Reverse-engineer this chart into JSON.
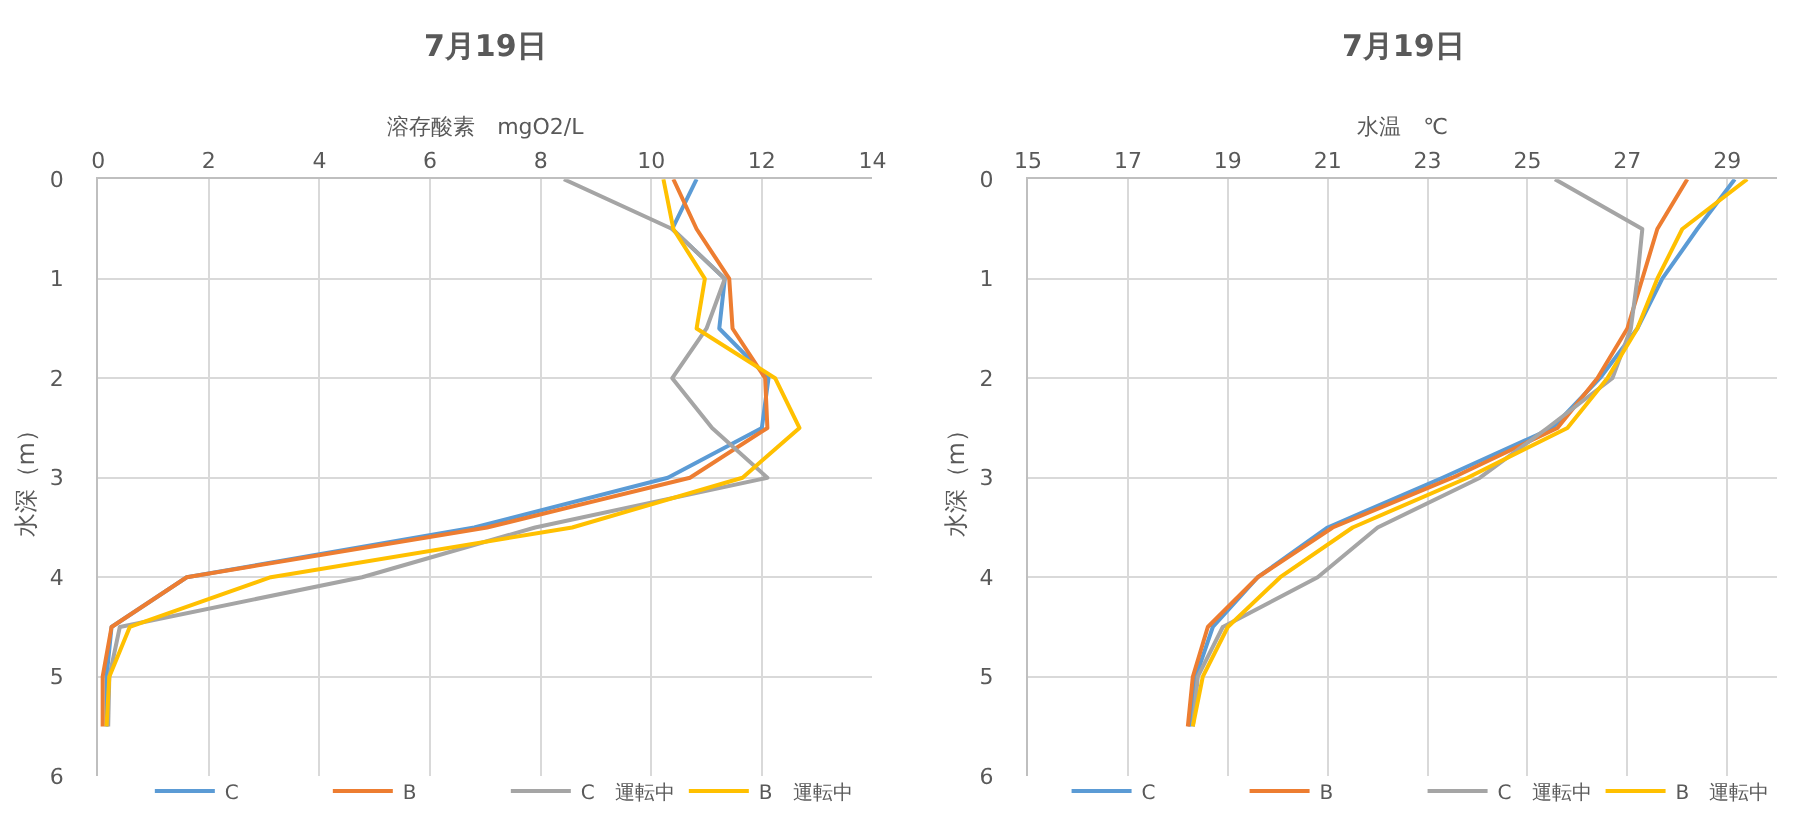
{
  "chart_data": [
    {
      "type": "line",
      "title": "7月19日",
      "xlabel": "溶存酸素　mgO2/L",
      "ylabel": "水深（m）",
      "xlim": [
        0,
        14
      ],
      "xticks": [
        0,
        2,
        4,
        6,
        8,
        10,
        12,
        14
      ],
      "ylim": [
        6,
        0
      ],
      "yticks": [
        0,
        1,
        2,
        3,
        4,
        5,
        6
      ],
      "grid": true,
      "legend": "bottom",
      "marker": "none",
      "line_style": "solid",
      "series": [
        {
          "name": "C",
          "color": "#5b9bd5",
          "x": [
            10.82,
            10.38,
            11.33,
            11.23,
            12.12,
            12.0,
            10.3,
            6.8,
            1.6,
            0.24,
            0.15,
            0.15
          ],
          "values": [
            0,
            0.5,
            1,
            1.5,
            2,
            2.5,
            3,
            3.5,
            4,
            4.5,
            5,
            5.5
          ]
        },
        {
          "name": "B",
          "color": "#ed7d31",
          "x": [
            10.4,
            10.82,
            11.41,
            11.47,
            12.06,
            12.1,
            10.7,
            7.03,
            1.6,
            0.24,
            0.08,
            0.08
          ],
          "values": [
            0,
            0.5,
            1,
            1.5,
            2,
            2.5,
            3,
            3.5,
            4,
            4.5,
            5,
            5.5
          ]
        },
        {
          "name": "C　運転中",
          "color": "#a5a5a5",
          "x": [
            8.42,
            10.38,
            11.33,
            11.0,
            10.38,
            11.1,
            12.1,
            7.9,
            4.77,
            0.39,
            0.2,
            0.18
          ],
          "values": [
            0,
            0.5,
            1,
            1.5,
            2,
            2.5,
            3,
            3.5,
            4,
            4.5,
            5,
            5.5
          ]
        },
        {
          "name": "B　運転中",
          "color": "#ffc000",
          "x": [
            10.22,
            10.4,
            10.97,
            10.82,
            12.24,
            12.68,
            11.65,
            8.57,
            3.12,
            0.57,
            0.2,
            0.15
          ],
          "values": [
            0,
            0.5,
            1,
            1.5,
            2,
            2.5,
            3,
            3.5,
            4,
            4.5,
            5,
            5.5
          ]
        }
      ]
    },
    {
      "type": "line",
      "title": "7月19日",
      "xlabel": "水温　℃",
      "ylabel": "水深（m）",
      "xlim": [
        15,
        30
      ],
      "xticks": [
        15,
        17,
        19,
        21,
        23,
        25,
        27,
        29
      ],
      "ylim": [
        6,
        0
      ],
      "yticks": [
        0,
        1,
        2,
        3,
        4,
        5,
        6
      ],
      "grid": true,
      "legend": "bottom",
      "marker": "none",
      "line_style": "solid",
      "series": [
        {
          "name": "C",
          "color": "#5b9bd5",
          "x": [
            29.15,
            28.4,
            27.7,
            27.2,
            26.45,
            25.5,
            23.3,
            21.0,
            19.6,
            18.7,
            18.36,
            18.23
          ],
          "values": [
            0,
            0.5,
            1,
            1.5,
            2,
            2.5,
            3,
            3.5,
            4,
            4.5,
            5,
            5.5
          ]
        },
        {
          "name": "B",
          "color": "#ed7d31",
          "x": [
            28.2,
            27.6,
            27.3,
            27.0,
            26.4,
            25.6,
            23.5,
            21.1,
            19.6,
            18.6,
            18.3,
            18.2
          ],
          "values": [
            0,
            0.5,
            1,
            1.5,
            2,
            2.5,
            3,
            3.5,
            4,
            4.5,
            5,
            5.5
          ]
        },
        {
          "name": "C　運転中",
          "color": "#a5a5a5",
          "x": [
            25.55,
            27.3,
            27.2,
            27.07,
            26.7,
            25.4,
            24.05,
            22.0,
            20.8,
            18.9,
            18.4,
            18.3
          ],
          "values": [
            0,
            0.5,
            1,
            1.5,
            2,
            2.5,
            3,
            3.5,
            4,
            4.5,
            5,
            5.5
          ]
        },
        {
          "name": "B　運転中",
          "color": "#ffc000",
          "x": [
            29.4,
            28.1,
            27.6,
            27.2,
            26.6,
            25.8,
            23.8,
            21.5,
            20.05,
            19.0,
            18.5,
            18.3
          ],
          "values": [
            0,
            0.5,
            1,
            1.5,
            2,
            2.5,
            3,
            3.5,
            4,
            4.5,
            5,
            5.5
          ]
        }
      ]
    }
  ]
}
